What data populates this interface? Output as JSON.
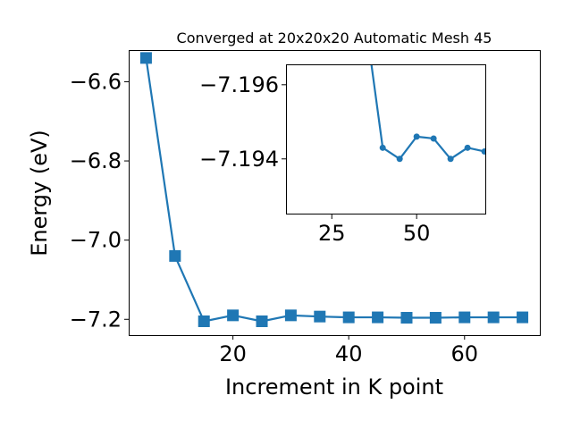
{
  "chart_data": [
    {
      "type": "line",
      "title": "Converged at 20x20x20 Automatic Mesh 45",
      "xlabel": "Increment in K point",
      "ylabel": "Energy (eV)",
      "xlim": [
        2,
        73
      ],
      "ylim": [
        -7.24,
        -6.52
      ],
      "xticks": [
        20,
        40,
        60
      ],
      "yticks": [
        -6.6,
        -6.8,
        -7.0,
        -7.2
      ],
      "ytick_labels": [
        "−6.6",
        "−6.8",
        "−7.0",
        "−7.2"
      ],
      "grid": false,
      "marker": "square",
      "color": "#1f77b4",
      "series": [
        {
          "x": [
            5,
            10,
            15,
            20,
            25,
            30,
            35,
            40,
            45,
            50,
            55,
            60,
            65,
            70
          ],
          "values": [
            -6.54,
            -7.04,
            -7.205,
            -7.19,
            -7.205,
            -7.19,
            -7.193,
            -7.195,
            -7.195,
            -7.196,
            -7.196,
            -7.195,
            -7.195,
            -7.195
          ]
        }
      ]
    },
    {
      "type": "line",
      "title": "",
      "xlabel": "",
      "ylabel": "",
      "xlim": [
        11.5,
        70.5
      ],
      "ylim": [
        -7.1925,
        -7.19655
      ],
      "xticks": [
        25,
        50
      ],
      "yticks": [
        -7.196,
        -7.194
      ],
      "ytick_labels": [
        "−7.196",
        "−7.194"
      ],
      "grid": false,
      "marker": "circle",
      "color": "#1f77b4",
      "series": [
        {
          "x": [
            36,
            40,
            45,
            50,
            55,
            60,
            65,
            70
          ],
          "values": [
            -7.197,
            -7.1943,
            -7.194,
            -7.1946,
            -7.19455,
            -7.194,
            -7.1943,
            -7.1942
          ]
        }
      ]
    }
  ]
}
